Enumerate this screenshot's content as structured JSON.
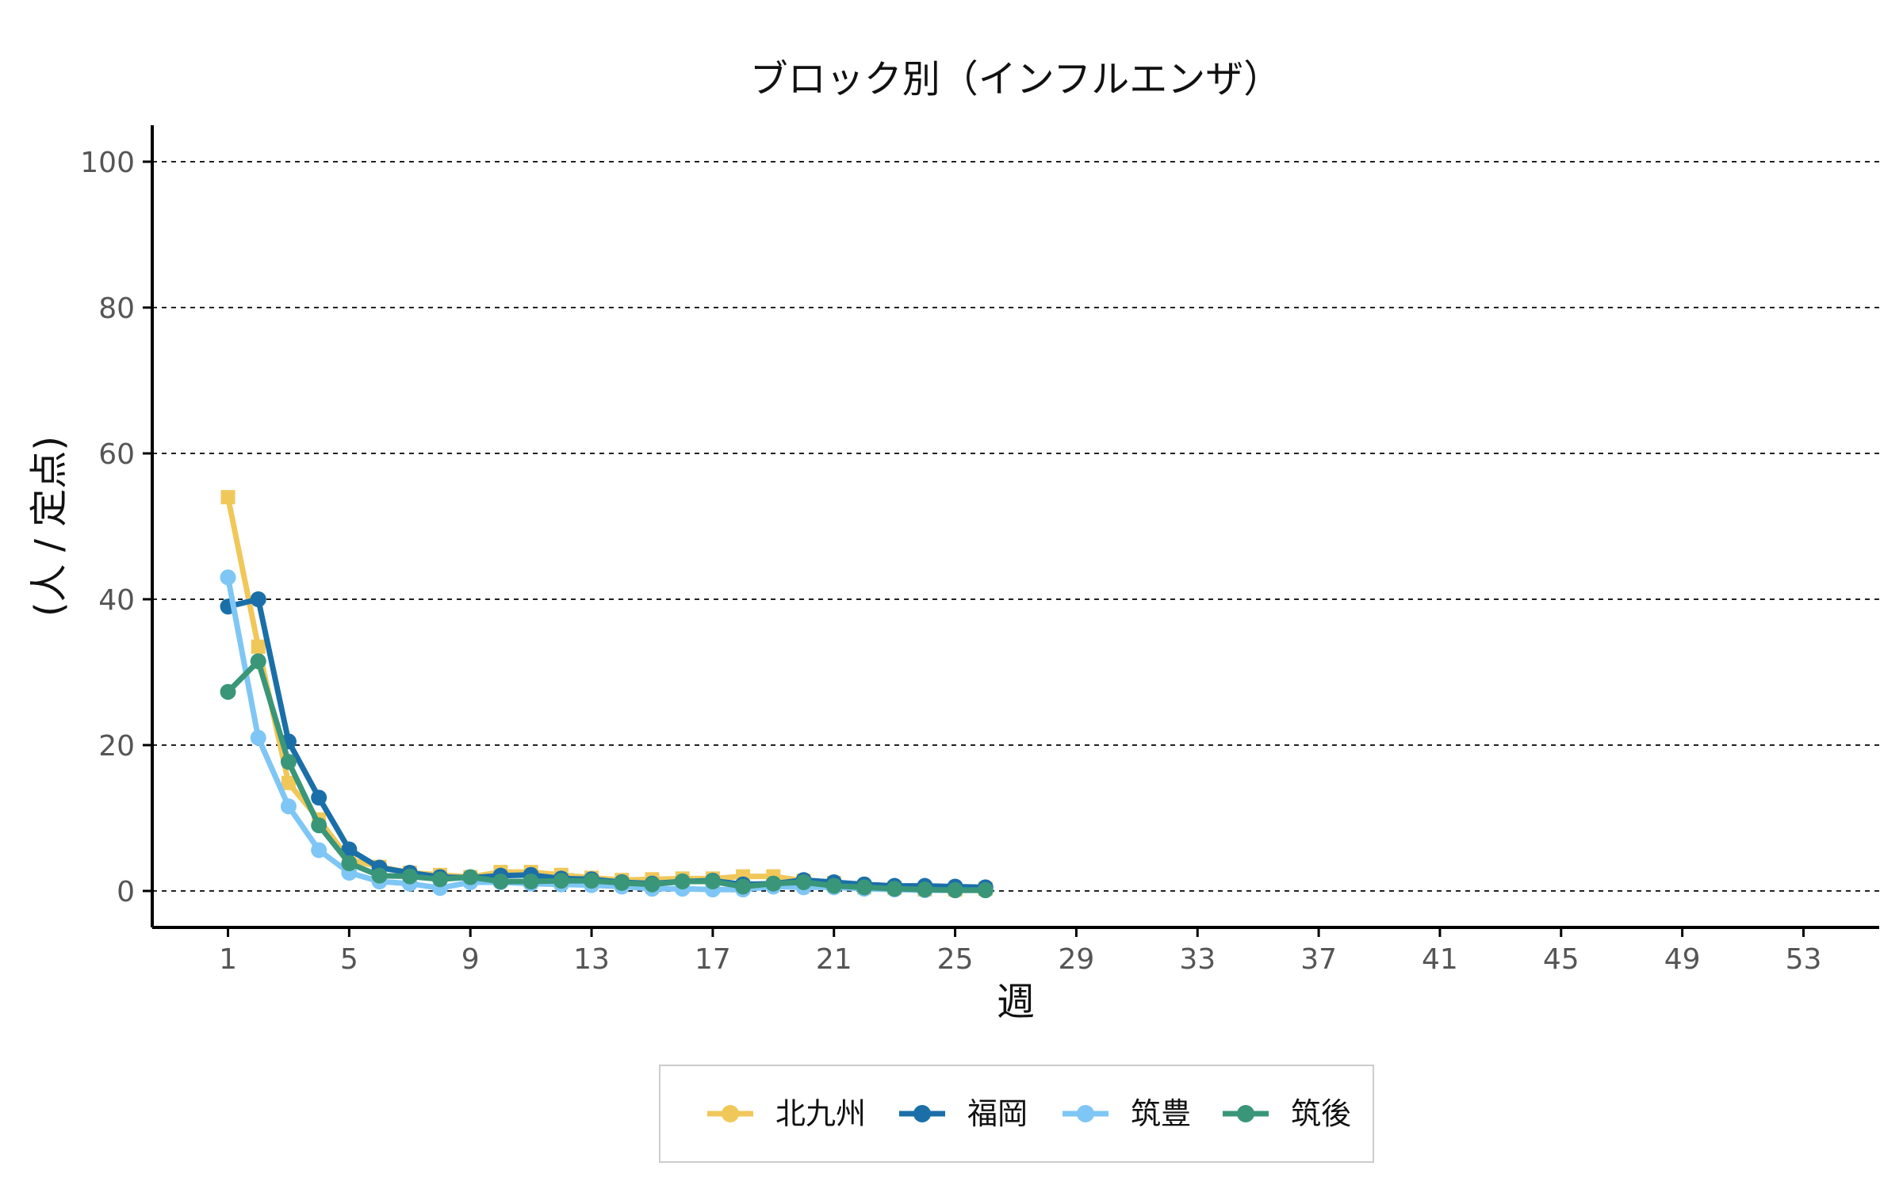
{
  "chart_data": {
    "type": "line",
    "title": "ブロック別（インフルエンザ）",
    "xlabel": "週",
    "ylabel": "(人 / 定点)",
    "xlim": [
      -1.5,
      55.5
    ],
    "ylim": [
      -5,
      105
    ],
    "x_ticks": [
      1,
      5,
      9,
      13,
      17,
      21,
      25,
      29,
      33,
      37,
      41,
      45,
      49,
      53
    ],
    "y_ticks": [
      0,
      20,
      40,
      60,
      80,
      100
    ],
    "grid": "horizontal-dashed",
    "legend_position": "bottom",
    "x": [
      1,
      2,
      3,
      4,
      5,
      6,
      7,
      8,
      9,
      10,
      11,
      12,
      13,
      14,
      15,
      16,
      17,
      18,
      19,
      20,
      21,
      22,
      23,
      24,
      25,
      26
    ],
    "series": [
      {
        "name": "北九州",
        "color": "#f0c85a",
        "marker": "square",
        "values": [
          54.0,
          33.5,
          14.8,
          9.8,
          4.3,
          3.3,
          2.5,
          2.2,
          1.9,
          2.6,
          2.6,
          2.2,
          1.8,
          1.5,
          1.6,
          1.7,
          1.7,
          2.0,
          2.0,
          1.4,
          1.1,
          0.5,
          0.4,
          0.2,
          0.2,
          0.3
        ]
      },
      {
        "name": "福岡",
        "color": "#1a6fa8",
        "marker": "circle",
        "values": [
          39.0,
          40.0,
          20.5,
          12.8,
          5.7,
          3.2,
          2.5,
          1.9,
          1.8,
          2.1,
          2.2,
          1.7,
          1.6,
          1.2,
          1.0,
          1.3,
          1.4,
          0.9,
          1.0,
          1.5,
          1.2,
          0.9,
          0.7,
          0.7,
          0.6,
          0.5
        ]
      },
      {
        "name": "筑豊",
        "color": "#7ec6f5",
        "marker": "circle",
        "values": [
          43.0,
          21.0,
          11.6,
          5.6,
          2.5,
          1.3,
          1.0,
          0.4,
          1.2,
          1.2,
          1.0,
          0.9,
          0.8,
          0.6,
          0.3,
          0.3,
          0.2,
          0.2,
          0.6,
          0.5,
          0.5,
          0.3,
          0.2,
          0.1,
          0.1,
          0.1
        ]
      },
      {
        "name": "筑後",
        "color": "#3a9678",
        "marker": "circle",
        "values": [
          27.3,
          31.5,
          17.7,
          9.0,
          3.8,
          2.1,
          2.0,
          1.6,
          1.9,
          1.3,
          1.3,
          1.4,
          1.4,
          1.1,
          0.9,
          1.3,
          1.3,
          0.6,
          1.0,
          1.2,
          0.7,
          0.5,
          0.3,
          0.2,
          0.1,
          0.1
        ]
      }
    ]
  }
}
